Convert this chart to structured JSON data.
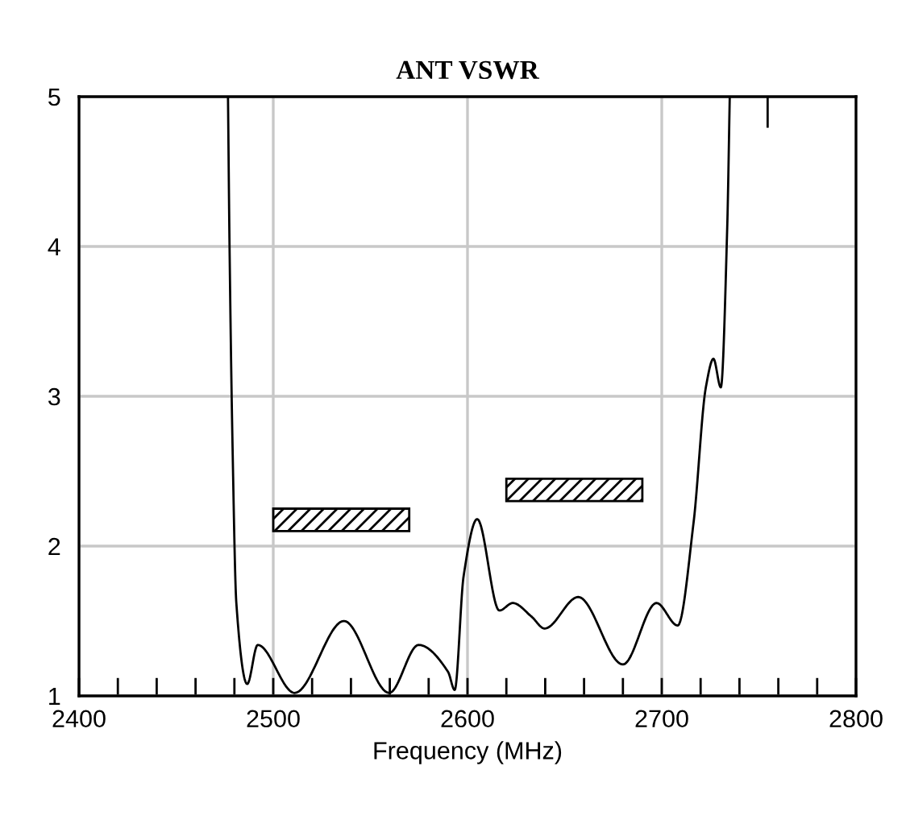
{
  "chart_data": {
    "type": "line",
    "title": "ANT VSWR",
    "xlabel": "Frequency (MHz)",
    "xlim": [
      2400,
      2800
    ],
    "xticks": [
      2400,
      2500,
      2600,
      2700,
      2800
    ],
    "ylim": [
      1,
      5
    ],
    "yticks": [
      1,
      2,
      3,
      4,
      5
    ],
    "grid": true,
    "marker": "none",
    "line_style": "solid",
    "series": [
      {
        "color": "#000000",
        "x": [
          2476.7,
          2477.5,
          2479,
          2481,
          2486.6,
          2492,
          2511,
          2536.4,
          2559.7,
          2574.8,
          2590,
          2593.4,
          2598,
          2605,
          2616.4,
          2623.3,
          2632.9,
          2639.7,
          2657,
          2680,
          2697.3,
          2708.2,
          2716.4,
          2722.7,
          2726.6,
          2730.4,
          2733.7,
          2735
        ],
        "values": [
          5,
          4.0,
          2.7,
          1.62,
          1.08,
          1.34,
          1.02,
          1.5,
          1.02,
          1.34,
          1.16,
          1.04,
          1.8,
          2.18,
          1.57,
          1.62,
          1.53,
          1.45,
          1.66,
          1.21,
          1.62,
          1.47,
          2.16,
          3.06,
          3.25,
          3.06,
          4.13,
          5
        ]
      },
      {
        "color": "#000000",
        "x": [
          2754.5,
          2754.5
        ],
        "values": [
          4.8,
          5
        ]
      },
      {
        "type": "bar",
        "color": "#000000",
        "x": [
          2535,
          2655
        ],
        "base": [
          2.1,
          2.3
        ],
        "values": [
          0.15,
          0.15
        ]
      }
    ]
  }
}
